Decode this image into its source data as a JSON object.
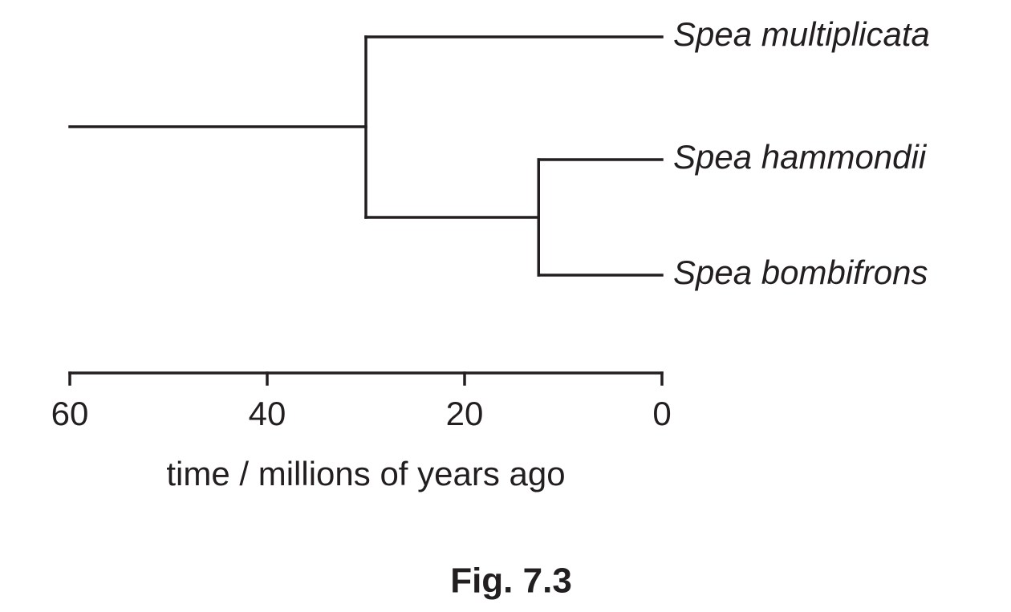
{
  "tree": {
    "root_start": 60,
    "nodes": [
      {
        "time": 30
      },
      {
        "time": 12.5
      }
    ],
    "species": [
      "Spea multiplicata",
      "Spea hammondii",
      "Spea bombifrons"
    ]
  },
  "axis": {
    "lim": [
      60,
      0
    ],
    "ticks": [
      60,
      40,
      20,
      0
    ],
    "label": "time / millions of years ago"
  },
  "caption": "Fig. 7.3"
}
